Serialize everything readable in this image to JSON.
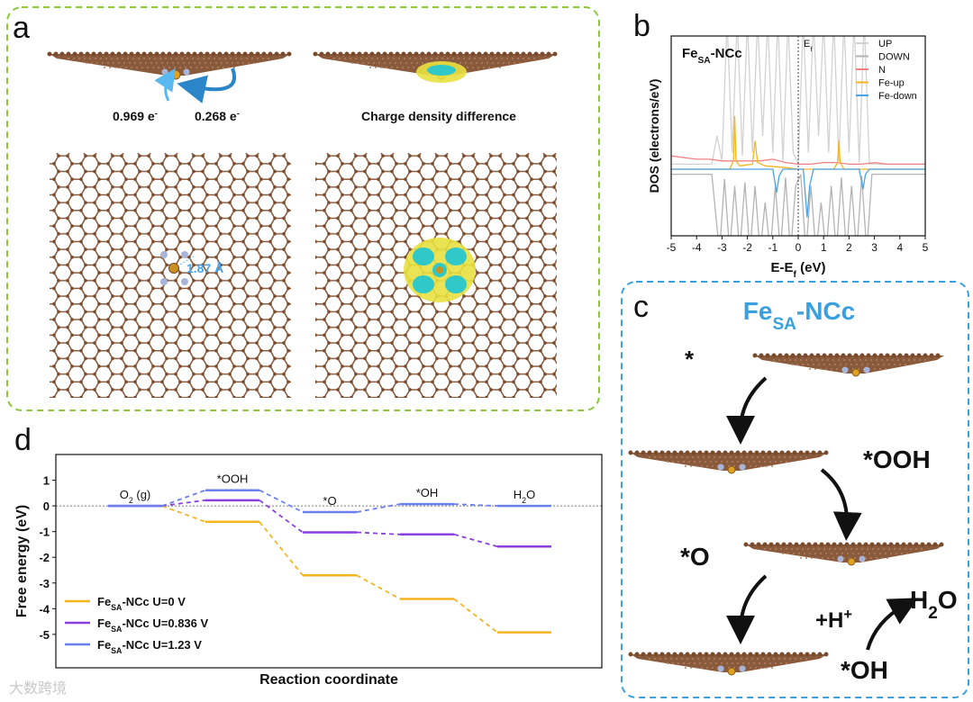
{
  "panel_labels": [
    "a",
    "b",
    "c",
    "d"
  ],
  "panel_a": {
    "charges": [
      [
        {
          "text": "0.969 e"
        },
        {
          "text": "-",
          "sup": true
        }
      ],
      [
        {
          "text": "0.268 e"
        },
        {
          "text": "-",
          "sup": true
        }
      ]
    ],
    "charge_density_label": "Charge density difference",
    "bond_length": "1.87 Å"
  },
  "panel_c": {
    "title": [
      {
        "text": "Fe"
      },
      {
        "text": "SA",
        "sub": true
      },
      {
        "text": "-NCc"
      }
    ],
    "states": [
      "*",
      "*OOH",
      "*O",
      "*OH"
    ],
    "proton": [
      {
        "text": "+H"
      },
      {
        "text": "+",
        "sup": true
      }
    ],
    "product": [
      {
        "text": "H"
      },
      {
        "text": "2",
        "sub": true
      },
      {
        "text": "O"
      }
    ]
  },
  "watermark": "大数跨境",
  "chart_data": [
    {
      "type": "line",
      "title": [
        {
          "text": "Fe"
        },
        {
          "text": "SA",
          "sub": true
        },
        {
          "text": "-NCc"
        }
      ],
      "xlabel": [
        {
          "text": "E-E"
        },
        {
          "text": "f",
          "sub": true
        },
        {
          "text": " (eV)"
        }
      ],
      "ylabel": "DOS (electrons/eV)",
      "annotation": [
        {
          "text": "E"
        },
        {
          "text": "f",
          "sub": true
        }
      ],
      "xlim": [
        -5,
        5
      ],
      "xticks": [
        -5,
        -4,
        -3,
        -2,
        -1,
        0,
        1,
        2,
        3,
        4,
        5
      ],
      "ylim": [
        -4,
        8
      ],
      "legend": "upper right",
      "series": [
        {
          "name": "UP",
          "color": "#d2d2d2",
          "x": [
            -5,
            -3.4,
            -3.2,
            -3,
            -2.8,
            -2.6,
            -2.4,
            -2.2,
            -2,
            -1.8,
            -1.6,
            -1.4,
            -1.2,
            -1,
            -0.8,
            -0.6,
            -0.4,
            -0.2,
            0,
            0.2,
            0.4,
            0.6,
            0.8,
            1,
            1.2,
            1.4,
            1.6,
            1.8,
            2,
            2.2,
            2.4,
            2.6,
            2.8,
            3,
            5
          ],
          "values": [
            0.3,
            0.3,
            2,
            0.5,
            9,
            1,
            9,
            0.8,
            9,
            1,
            9,
            2,
            9,
            1,
            9,
            0.5,
            9,
            1,
            0.3,
            9,
            1,
            9,
            2,
            9,
            1,
            9,
            0.5,
            9,
            1,
            9,
            0.4,
            9,
            0.3,
            0.3,
            0.3
          ]
        },
        {
          "name": "DOWN",
          "color": "#b4b4b4",
          "x": [
            -5,
            -3.4,
            -3.1,
            -2.9,
            -2.7,
            -2.5,
            -2.3,
            -2.1,
            -1.9,
            -1.7,
            -1.5,
            -1.3,
            -1.1,
            -0.9,
            -0.7,
            -0.5,
            -0.3,
            -0.1,
            0.1,
            0.3,
            0.5,
            0.7,
            0.9,
            1.1,
            1.3,
            1.5,
            1.7,
            1.9,
            2.1,
            2.3,
            2.5,
            2.7,
            2.9,
            3.1,
            5
          ],
          "values": [
            -0.3,
            -0.3,
            -5,
            -0.6,
            -5,
            -1,
            -5,
            -0.8,
            -5,
            -1,
            -5,
            -2,
            -5,
            -1,
            -5,
            -0.5,
            -5,
            -1,
            -0.3,
            -5,
            -1,
            -5,
            -2,
            -5,
            -1,
            -5,
            -0.5,
            -5,
            -1,
            -5,
            -0.4,
            -5,
            -0.3,
            -0.3,
            -0.3
          ]
        },
        {
          "name": "N",
          "color": "#f08080",
          "x": [
            -5,
            -4.5,
            -4,
            -3.5,
            -3,
            -2.5,
            -2,
            -1.5,
            -1,
            -0.5,
            0,
            0.5,
            1,
            1.5,
            2,
            2.5,
            3,
            3.5,
            4,
            4.5,
            5
          ],
          "values": [
            0.8,
            0.7,
            0.6,
            0.6,
            0.5,
            0.5,
            0.5,
            0.5,
            0.6,
            0.4,
            0.3,
            0.3,
            0.4,
            0.4,
            0.3,
            0.3,
            0.4,
            0.3,
            0.3,
            0.3,
            0.3
          ]
        },
        {
          "name": "Fe-up",
          "color": "#f5b521",
          "x": [
            -5,
            -2.7,
            -2.55,
            -2.5,
            -2.45,
            -2.3,
            -1.8,
            -1.7,
            -1.6,
            -1.3,
            -0.5,
            0,
            1.4,
            1.55,
            1.6,
            1.65,
            1.8,
            5
          ],
          "values": [
            0,
            0,
            0.5,
            3.2,
            0.5,
            0.2,
            0.3,
            1.7,
            0.4,
            0.2,
            0.1,
            0,
            0,
            0.4,
            1.7,
            0.4,
            0,
            0
          ]
        },
        {
          "name": "Fe-down",
          "color": "#4aa3e8",
          "x": [
            -5,
            -1,
            -0.85,
            -0.75,
            -0.6,
            0.2,
            0.35,
            0.45,
            0.6,
            2.4,
            2.55,
            2.65,
            2.8,
            5
          ],
          "values": [
            0,
            0,
            -1.4,
            -0.4,
            0,
            0,
            -2.9,
            -1,
            0,
            0,
            -1.2,
            -0.3,
            0,
            0
          ]
        }
      ]
    },
    {
      "type": "levels",
      "ylabel": "Free energy (eV)",
      "xlabel": "Reaction coordinate",
      "categories": [
        [
          {
            "text": "O"
          },
          {
            "text": "2",
            "sub": true
          },
          {
            "text": " (g)"
          }
        ],
        [
          {
            "text": "*OOH"
          }
        ],
        [
          {
            "text": "*O"
          }
        ],
        [
          {
            "text": "*OH"
          }
        ],
        [
          {
            "text": "H"
          },
          {
            "text": "2",
            "sub": true
          },
          {
            "text": "O"
          }
        ]
      ],
      "ylim": [
        -6.3,
        2
      ],
      "yticks": [
        -5,
        -4,
        -3,
        -2,
        -1,
        0,
        1
      ],
      "legend": "lower left",
      "series": [
        {
          "name": [
            {
              "text": "Fe"
            },
            {
              "text": "SA",
              "sub": true
            },
            {
              "text": "-NCc U=0 V"
            }
          ],
          "color": "#f5b521",
          "values": [
            0,
            -0.62,
            -2.7,
            -3.62,
            -4.92
          ]
        },
        {
          "name": [
            {
              "text": "Fe"
            },
            {
              "text": "SA",
              "sub": true
            },
            {
              "text": "-NCc U=0.836 V"
            }
          ],
          "color": "#8a3fe0",
          "values": [
            0,
            0.22,
            -1.03,
            -1.11,
            -1.58
          ]
        },
        {
          "name": [
            {
              "text": "Fe"
            },
            {
              "text": "SA",
              "sub": true
            },
            {
              "text": "-NCc U=1.23 V"
            }
          ],
          "color": "#6a7ff0",
          "values": [
            0,
            0.61,
            -0.24,
            0.07,
            0
          ]
        }
      ]
    }
  ]
}
